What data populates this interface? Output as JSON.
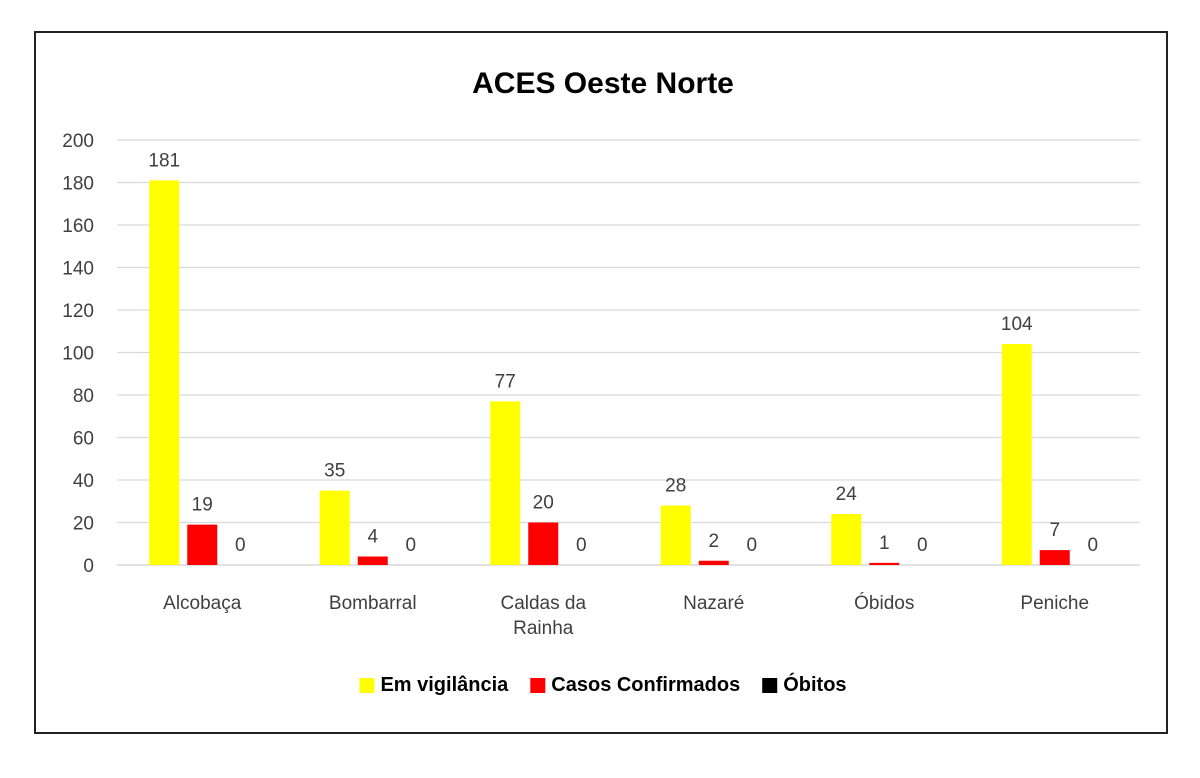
{
  "chart_data": {
    "type": "bar",
    "title": "ACES Oeste Norte",
    "xlabel": "",
    "ylabel": "",
    "ylim": [
      0,
      200
    ],
    "yticks": [
      0,
      20,
      40,
      60,
      80,
      100,
      120,
      140,
      160,
      180,
      200
    ],
    "grid": true,
    "legend_position": "bottom",
    "categories": [
      [
        "Alcobaça"
      ],
      [
        "Bombarral"
      ],
      [
        "Caldas da",
        "Rainha"
      ],
      [
        "Nazaré"
      ],
      [
        "Óbidos"
      ],
      [
        "Peniche"
      ]
    ],
    "series": [
      {
        "name": "Em vigilância",
        "color": "#FFFF00",
        "values": [
          181,
          35,
          77,
          28,
          24,
          104
        ]
      },
      {
        "name": "Casos Confirmados",
        "color": "#FF0000",
        "values": [
          19,
          4,
          20,
          2,
          1,
          7
        ]
      },
      {
        "name": "Óbitos",
        "color": "#000000",
        "values": [
          0,
          0,
          0,
          0,
          0,
          0
        ]
      }
    ]
  }
}
